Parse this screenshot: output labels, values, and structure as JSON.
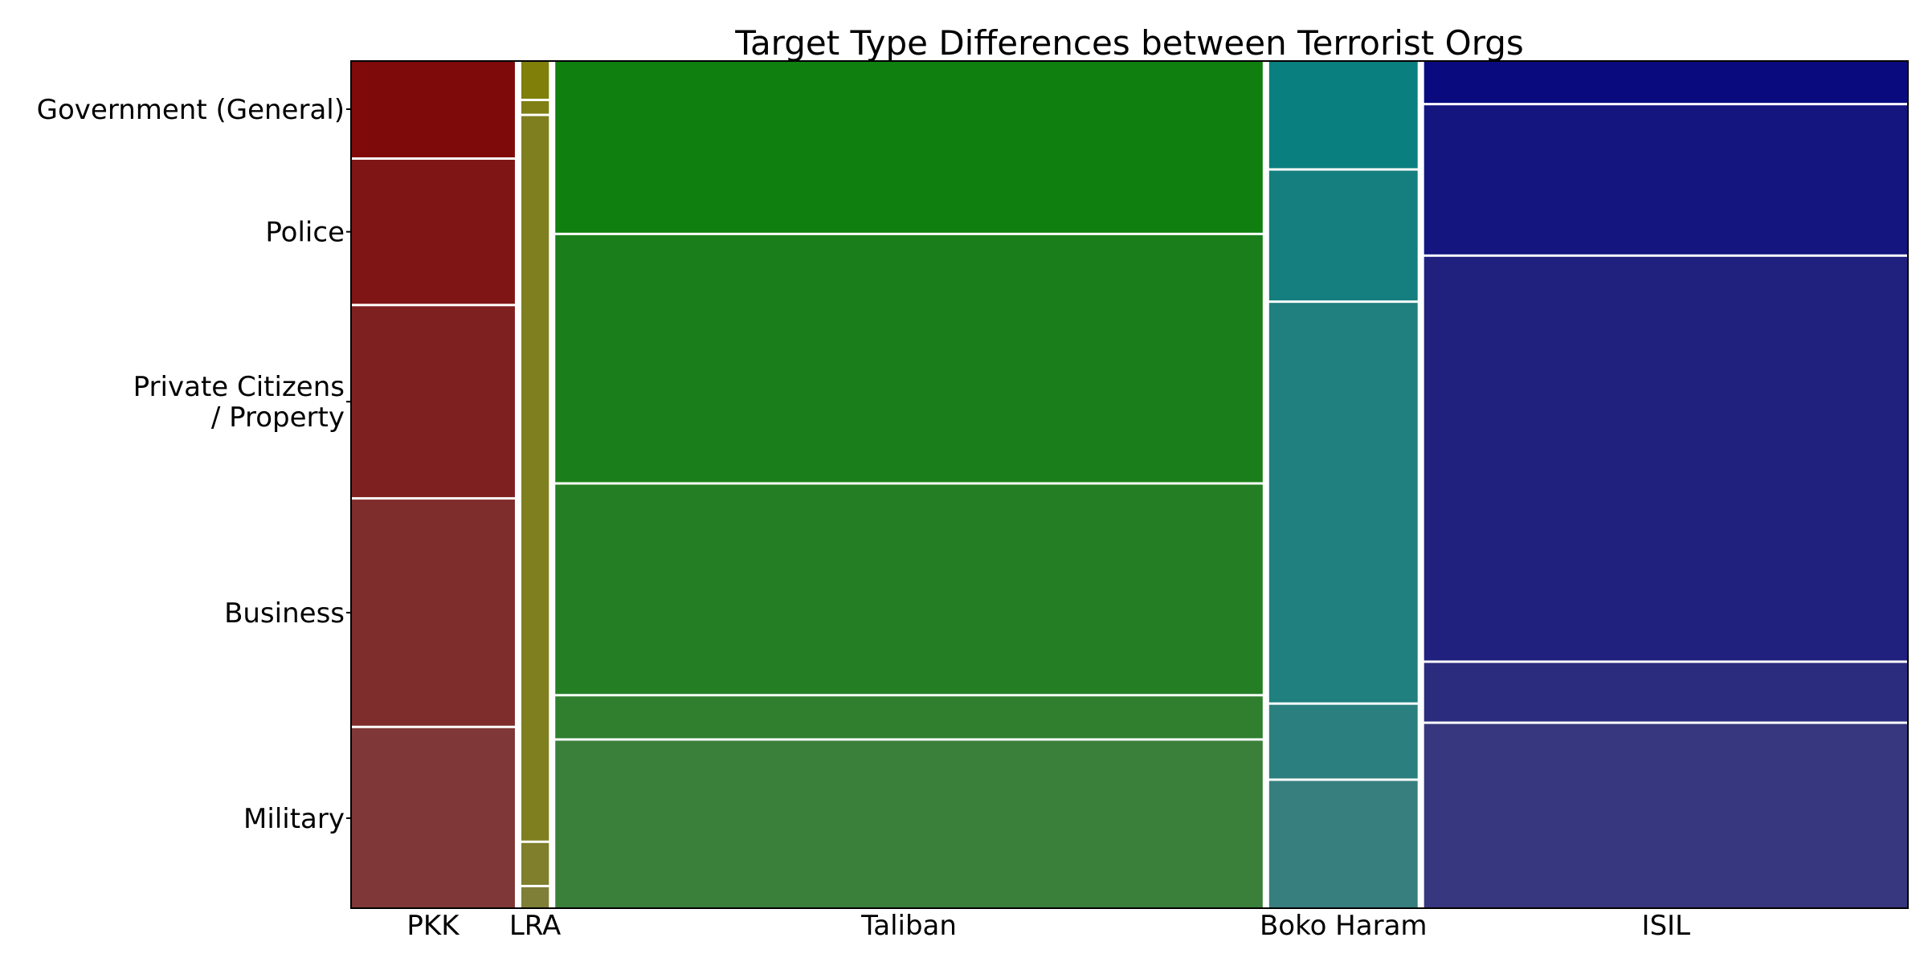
{
  "chart_data": {
    "type": "mosaic",
    "title": "Target Type Differences between Terrorist Orgs",
    "xlabel": "",
    "ylabel": "",
    "y_tick_labels": [
      "Government (General)",
      "Police",
      "Private Citizens\n/ Property",
      "Business",
      "Military"
    ],
    "categories": [
      "PKK",
      "LRA",
      "Taliban",
      "Boko Haram",
      "ISIL"
    ],
    "column_width_fractions": [
      0.107,
      0.018,
      0.462,
      0.097,
      0.316
    ],
    "row_order_bottom_to_top": [
      "Military",
      "Business",
      "Private Citizens / Property",
      "Police",
      "Government (General)"
    ],
    "groups": [
      {
        "name": "PKK",
        "color": "#7f0a0a",
        "segments": [
          {
            "target": "Military",
            "share": 0.215
          },
          {
            "target": "Business",
            "share": 0.27
          },
          {
            "target": "Private Citizens / Property",
            "share": 0.228
          },
          {
            "target": "Police",
            "share": 0.172
          },
          {
            "target": "Government (General)",
            "share": 0.115
          }
        ]
      },
      {
        "name": "LRA",
        "color": "#7f7f0a",
        "segments": [
          {
            "target": "Military",
            "share": 0.025
          },
          {
            "target": "Business",
            "share": 0.05
          },
          {
            "target": "Private Citizens / Property",
            "share": 0.865
          },
          {
            "target": "Police",
            "share": 0.015
          },
          {
            "target": "Government (General)",
            "share": 0.045
          }
        ]
      },
      {
        "name": "Taliban",
        "color": "#0f7f0f",
        "segments": [
          {
            "target": "Military",
            "share": 0.2
          },
          {
            "target": "Business",
            "share": 0.05
          },
          {
            "target": "Private Citizens / Property",
            "share": 0.25
          },
          {
            "target": "Police",
            "share": 0.295
          },
          {
            "target": "Government (General)",
            "share": 0.205
          }
        ]
      },
      {
        "name": "Boko Haram",
        "color": "#0a7f7f",
        "segments": [
          {
            "target": "Military",
            "share": 0.152
          },
          {
            "target": "Business",
            "share": 0.088
          },
          {
            "target": "Private Citizens / Property",
            "share": 0.477
          },
          {
            "target": "Police",
            "share": 0.155
          },
          {
            "target": "Government (General)",
            "share": 0.128
          }
        ]
      },
      {
        "name": "ISIL",
        "color": "#0a0a7f",
        "segments": [
          {
            "target": "Military",
            "share": 0.22
          },
          {
            "target": "Business",
            "share": 0.07
          },
          {
            "target": "Private Citizens / Property",
            "share": 0.482
          },
          {
            "target": "Police",
            "share": 0.178
          },
          {
            "target": "Government (General)",
            "share": 0.05
          }
        ]
      }
    ],
    "grid": false,
    "legend": "none"
  }
}
